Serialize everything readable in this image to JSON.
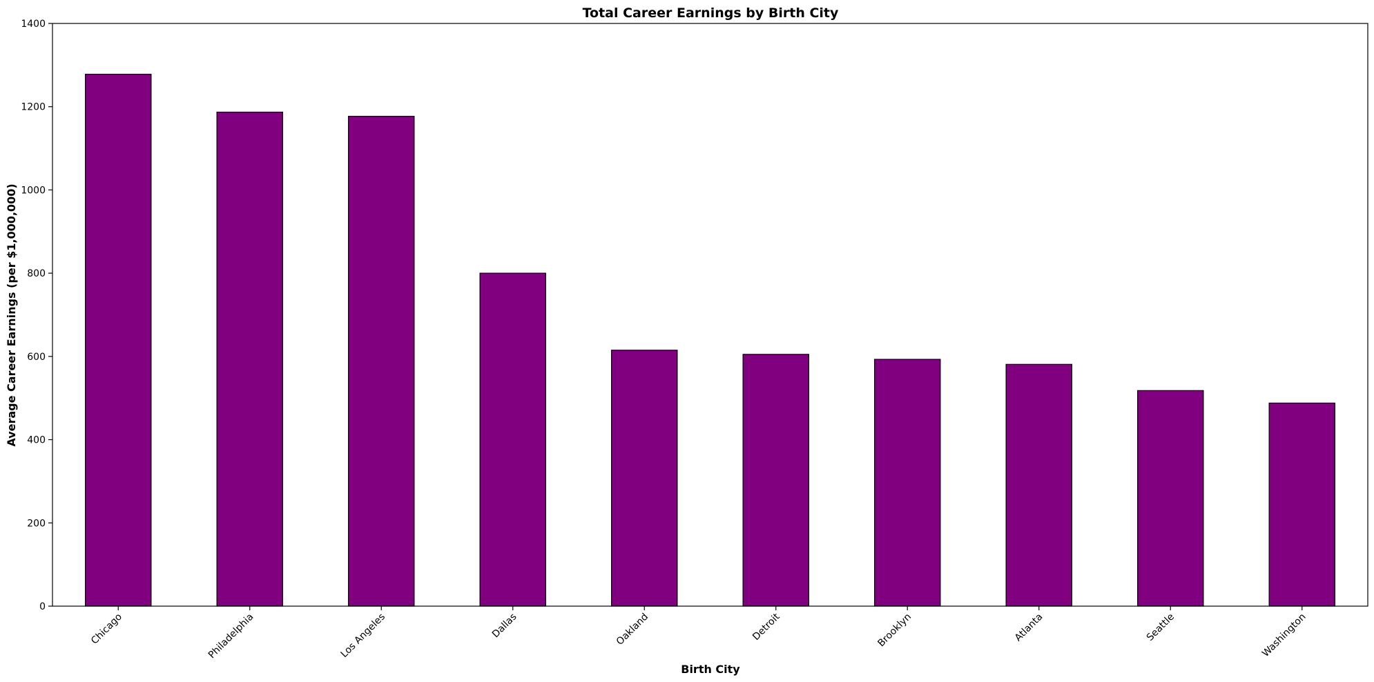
{
  "chart_data": {
    "type": "bar",
    "title": "Total Career Earnings by Birth City",
    "xlabel": "Birth City",
    "ylabel": "Average Career Earnings (per $1,000,000)",
    "categories": [
      "Chicago",
      "Philadelphia",
      "Los Angeles",
      "Dallas",
      "Oakland",
      "Detroit",
      "Brooklyn",
      "Atlanta",
      "Seattle",
      "Washington"
    ],
    "values": [
      1278,
      1187,
      1177,
      800,
      615,
      605,
      593,
      581,
      518,
      488
    ],
    "ylim": [
      0,
      1400
    ],
    "yticks": [
      0,
      200,
      400,
      600,
      800,
      1000,
      1200,
      1400
    ],
    "bar_color": "#800080",
    "edge_color": "#000000",
    "grid": false,
    "legend": false
  }
}
